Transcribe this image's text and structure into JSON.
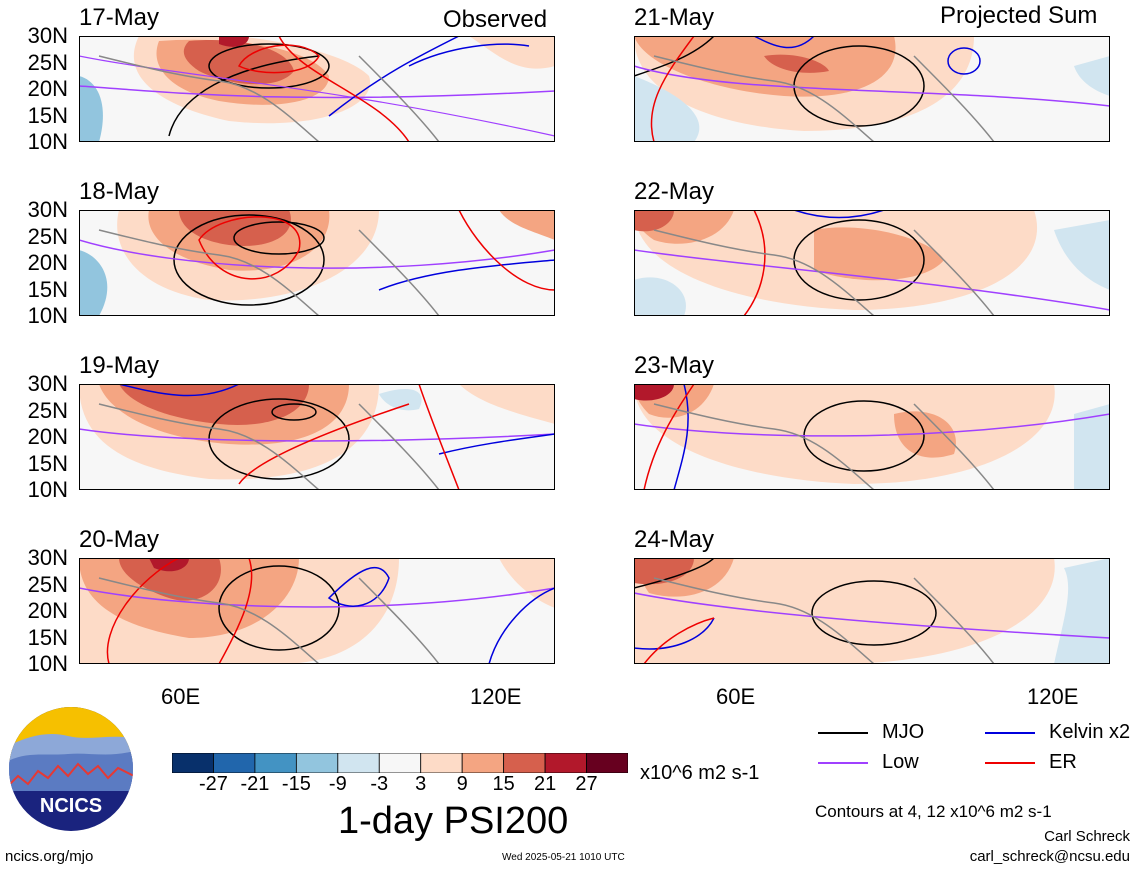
{
  "column_titles": {
    "left": "Observed",
    "right": "Projected Sum"
  },
  "panels_left": [
    {
      "date": "17-May"
    },
    {
      "date": "18-May"
    },
    {
      "date": "19-May"
    },
    {
      "date": "20-May"
    }
  ],
  "panels_right": [
    {
      "date": "21-May"
    },
    {
      "date": "22-May"
    },
    {
      "date": "23-May"
    },
    {
      "date": "24-May"
    }
  ],
  "lat_labels": [
    "30N",
    "25N",
    "20N",
    "15N",
    "10N"
  ],
  "lon_labels": [
    "60E",
    "120E"
  ],
  "colorbar": {
    "labels": [
      "-27",
      "-21",
      "-15",
      "-9",
      "-3",
      "3",
      "9",
      "15",
      "21",
      "27"
    ],
    "colors": [
      "#08306b",
      "#2166ac",
      "#4393c3",
      "#92c5de",
      "#d1e5f0",
      "#f7f7f7",
      "#fddbc7",
      "#f4a582",
      "#d6604d",
      "#b2182b",
      "#67001f"
    ],
    "units": "x10^6 m2 s-1"
  },
  "title": "1-day PSI200",
  "legend": [
    {
      "label": "MJO",
      "color": "#000000"
    },
    {
      "label": "Kelvin x2",
      "color": "#0000dd"
    },
    {
      "label": "Low",
      "color": "#a040ff"
    },
    {
      "label": "ER",
      "color": "#ee0000"
    }
  ],
  "contours_note": "Contours at 4, 12 x10^6 m2 s-1",
  "author": "Carl Schreck",
  "email": "carl_schreck@ncsu.edu",
  "site": "ncics.org/mjo",
  "timestamp": "Wed 2025-05-21 1010 UTC",
  "logo_text": "NCICS"
}
